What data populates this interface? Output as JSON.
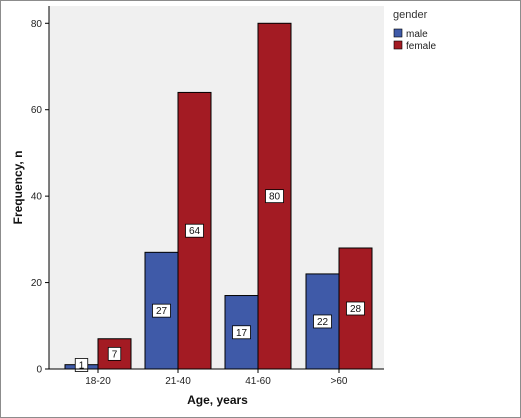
{
  "chart_data": {
    "type": "bar",
    "categories": [
      "18-20",
      "21-40",
      "41-60",
      ">60"
    ],
    "series": [
      {
        "name": "male",
        "values": [
          1,
          27,
          17,
          22
        ],
        "color": "#3f5aa8"
      },
      {
        "name": "female",
        "values": [
          7,
          64,
          80,
          28
        ],
        "color": "#a31b23"
      }
    ],
    "ylim": [
      0,
      84
    ],
    "yticks": [
      0,
      20,
      40,
      60,
      80
    ],
    "xlabel": "Age, years",
    "ylabel": "Frequency, n",
    "legend_title": "gender",
    "legend_position": "top-right",
    "grid": false,
    "plot_background": "#f0f0f0"
  }
}
